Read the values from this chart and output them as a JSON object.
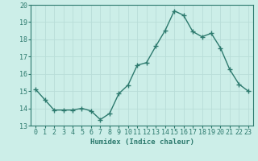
{
  "x": [
    0,
    1,
    2,
    3,
    4,
    5,
    6,
    7,
    8,
    9,
    10,
    11,
    12,
    13,
    14,
    15,
    16,
    17,
    18,
    19,
    20,
    21,
    22,
    23
  ],
  "y": [
    15.1,
    14.5,
    13.9,
    13.9,
    13.9,
    14.0,
    13.85,
    13.35,
    13.7,
    14.85,
    15.35,
    16.5,
    16.65,
    17.6,
    18.5,
    19.65,
    19.4,
    18.45,
    18.15,
    18.35,
    17.5,
    16.25,
    15.4,
    15.0
  ],
  "line_color": "#2d7a6e",
  "marker": "+",
  "marker_size": 4,
  "linewidth": 1.0,
  "xlabel": "Humidex (Indice chaleur)",
  "xlim": [
    -0.5,
    23.5
  ],
  "ylim": [
    13,
    20
  ],
  "yticks": [
    13,
    14,
    15,
    16,
    17,
    18,
    19,
    20
  ],
  "xticks": [
    0,
    1,
    2,
    3,
    4,
    5,
    6,
    7,
    8,
    9,
    10,
    11,
    12,
    13,
    14,
    15,
    16,
    17,
    18,
    19,
    20,
    21,
    22,
    23
  ],
  "bg_color": "#cceee8",
  "grid_color": "#b8ddd8",
  "line_label_color": "#2d7a6e",
  "font_size": 6.0,
  "xlabel_fontsize": 6.5
}
